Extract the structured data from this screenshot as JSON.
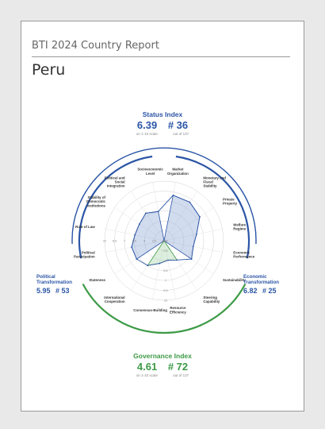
{
  "header": {
    "report_title": "BTI 2024 Country Report",
    "country": "Peru"
  },
  "status_index": {
    "title": "Status Index",
    "score": "6.39",
    "rank": "# 36",
    "scale_note": "on 1-10 scale",
    "rank_note": "out of 137"
  },
  "governance_index": {
    "title": "Governance Index",
    "score": "4.61",
    "rank": "# 72",
    "scale_note": "on 1-10 scale",
    "rank_note": "out of 137"
  },
  "political_transformation": {
    "name_line1": "Political",
    "name_line2": "Transformation",
    "score": "5.95",
    "rank": "# 53"
  },
  "economic_transformation": {
    "name_line1": "Economic",
    "name_line2": "Transformation",
    "score": "6.82",
    "rank": "# 25"
  },
  "colors": {
    "political": "#2b55a6",
    "economic": "#2b55a6",
    "governance": "#3c9a46"
  },
  "chart_data": {
    "type": "radar",
    "scale": [
      1,
      10
    ],
    "economic_criteria": [
      {
        "name": "Market Organization",
        "value": 8.0
      },
      {
        "name": "Monetary and Fiscal Stability",
        "value": 8.0
      },
      {
        "name": "Private Property",
        "value": 7.5
      },
      {
        "name": "Welfare Regime",
        "value": 6.0
      },
      {
        "name": "Economic Performance",
        "value": 5.5
      },
      {
        "name": "Sustainability",
        "value": 6.0
      }
    ],
    "governance_criteria": [
      {
        "name": "Steering Capability",
        "value": 4.5
      },
      {
        "name": "Resource Efficiency",
        "value": 4.0
      },
      {
        "name": "Consensus-Building",
        "value": 4.5
      },
      {
        "name": "International Cooperation",
        "value": 5.5
      }
    ],
    "political_criteria": [
      {
        "name": "Stateness",
        "value": 6.0
      },
      {
        "name": "Political Participation",
        "value": 6.0
      },
      {
        "name": "Rule of Law",
        "value": 5.5
      },
      {
        "name": "Stability of Democratic Institutions",
        "value": 5.5
      },
      {
        "name": "Political and Social Integration",
        "value": 6.0
      },
      {
        "name": "Socioeconomic Level",
        "value": 5.5
      }
    ],
    "ring_labels": [
      "10",
      "8.5",
      "7",
      "5.5",
      "4",
      "2.5",
      "1.0"
    ]
  }
}
